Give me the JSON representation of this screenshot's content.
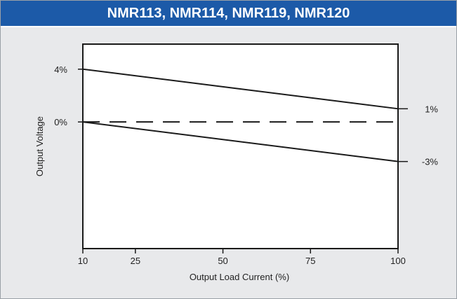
{
  "chart_data": {
    "type": "line",
    "title": "NMR113, NMR114, NMR119, NMR120",
    "xlabel": "Output Load Current (%)",
    "ylabel": "Output Voltage",
    "x_ticks": [
      "10",
      "25",
      "50",
      "75",
      "100"
    ],
    "y_ticks": [
      "4%",
      "0%"
    ],
    "xlim": [
      10,
      100
    ],
    "ylim": [
      -9.6,
      5.9
    ],
    "grid": false,
    "series": [
      {
        "name": "",
        "style": "solid",
        "x": [
          10,
          100
        ],
        "y": [
          4,
          1
        ],
        "end_label": "1%"
      },
      {
        "name": "",
        "style": "solid",
        "x": [
          10,
          100
        ],
        "y": [
          0,
          -3
        ],
        "end_label": "-3%"
      },
      {
        "name": "",
        "style": "dashed",
        "x": [
          10,
          100
        ],
        "y": [
          0,
          0
        ]
      }
    ]
  },
  "colors": {
    "header_bg": "#1c5aa8",
    "panel_bg": "#e8e9eb",
    "plot_bg": "#ffffff",
    "line": "#1a1a1a"
  }
}
